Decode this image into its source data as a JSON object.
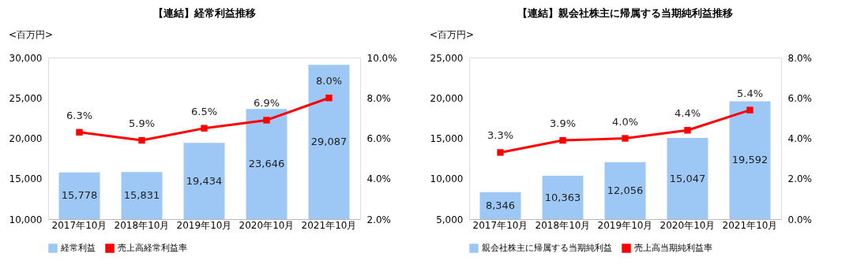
{
  "chart_data": [
    {
      "type": "bar",
      "title": "【連結】経常利益推移",
      "annotations": [
        "<百万円>"
      ],
      "categories": [
        "2017年10月",
        "2018年10月",
        "2019年10月",
        "2020年10月",
        "2021年10月"
      ],
      "series": [
        {
          "name": "経常利益",
          "color": "#9dc8f5",
          "values": [
            15778,
            15831,
            19434,
            23646,
            29087
          ],
          "value_labels": [
            "15,778",
            "15,831",
            "19,434",
            "23,646",
            "29,087"
          ]
        },
        {
          "name": "売上高経常利益率",
          "type": "line",
          "axis": "y2",
          "color": "#ff0000",
          "values": [
            6.3,
            5.9,
            6.5,
            6.9,
            8.0
          ],
          "value_labels": [
            "6.3%",
            "5.9%",
            "6.5%",
            "6.9%",
            "8.0%"
          ]
        }
      ],
      "marker": "square",
      "legend": "bottom",
      "grid": false,
      "ylim": [
        10000,
        30000
      ],
      "yticks": [
        {
          "value": 10000,
          "label": "10,000"
        },
        {
          "value": 15000,
          "label": "15,000"
        },
        {
          "value": 20000,
          "label": "20,000"
        },
        {
          "value": 25000,
          "label": "25,000"
        },
        {
          "value": 30000,
          "label": "30,000"
        }
      ],
      "y2lim": [
        2,
        10
      ],
      "y2ticks": [
        {
          "value": 2,
          "label": "2.0%"
        },
        {
          "value": 4,
          "label": "4.0%"
        },
        {
          "value": 6,
          "label": "6.0%"
        },
        {
          "value": 8,
          "label": "8.0%"
        },
        {
          "value": 10,
          "label": "10.0%"
        }
      ]
    },
    {
      "type": "bar",
      "title": "【連結】親会社株主に帰属する当期純利益推移",
      "annotations": [
        "<百万円>"
      ],
      "categories": [
        "2017年10月",
        "2018年10月",
        "2019年10月",
        "2020年10月",
        "2021年10月"
      ],
      "series": [
        {
          "name": "親会社株主に帰属する当期純利益",
          "color": "#9dc8f5",
          "values": [
            8346,
            10363,
            12056,
            15047,
            19592
          ],
          "value_labels": [
            "8,346",
            "10,363",
            "12,056",
            "15,047",
            "19,592"
          ]
        },
        {
          "name": "売上高当期純利益率",
          "type": "line",
          "axis": "y2",
          "color": "#ff0000",
          "values": [
            3.3,
            3.9,
            4.0,
            4.4,
            5.4
          ],
          "value_labels": [
            "3.3%",
            "3.9%",
            "4.0%",
            "4.4%",
            "5.4%"
          ]
        }
      ],
      "marker": "square",
      "legend": "bottom",
      "grid": false,
      "ylim": [
        5000,
        25000
      ],
      "yticks": [
        {
          "value": 5000,
          "label": "5,000"
        },
        {
          "value": 10000,
          "label": "10,000"
        },
        {
          "value": 15000,
          "label": "15,000"
        },
        {
          "value": 20000,
          "label": "20,000"
        },
        {
          "value": 25000,
          "label": "25,000"
        }
      ],
      "y2lim": [
        0,
        8
      ],
      "y2ticks": [
        {
          "value": 0,
          "label": "0.0%"
        },
        {
          "value": 2,
          "label": "2.0%"
        },
        {
          "value": 4,
          "label": "4.0%"
        },
        {
          "value": 6,
          "label": "6.0%"
        },
        {
          "value": 8,
          "label": "8.0%"
        }
      ]
    }
  ]
}
